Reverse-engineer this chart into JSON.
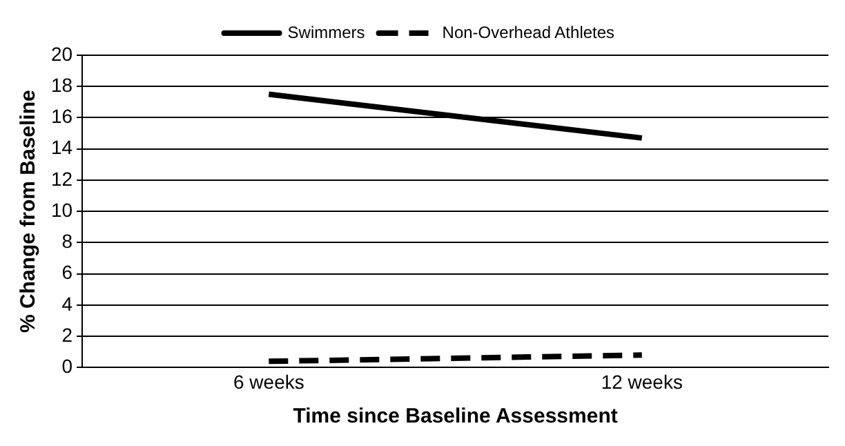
{
  "chart_data": {
    "type": "line",
    "xlabel": "Time since Baseline Assessment",
    "ylabel": "% Change from Baseline",
    "categories": [
      "6 weeks",
      "12 weeks"
    ],
    "series": [
      {
        "name": "Swimmers",
        "color": "#000000",
        "values": [
          17.5,
          14.7
        ],
        "line_style": "solid"
      },
      {
        "name": "Non-Overhead Athletes",
        "color": "#000000",
        "values": [
          0.4,
          0.8
        ],
        "line_style": "dashed"
      }
    ],
    "ylim": [
      0,
      20
    ],
    "yticks": [
      0,
      2,
      4,
      6,
      8,
      10,
      12,
      14,
      16,
      18,
      20
    ],
    "grid": "y",
    "legend": "top",
    "marker": "none"
  }
}
